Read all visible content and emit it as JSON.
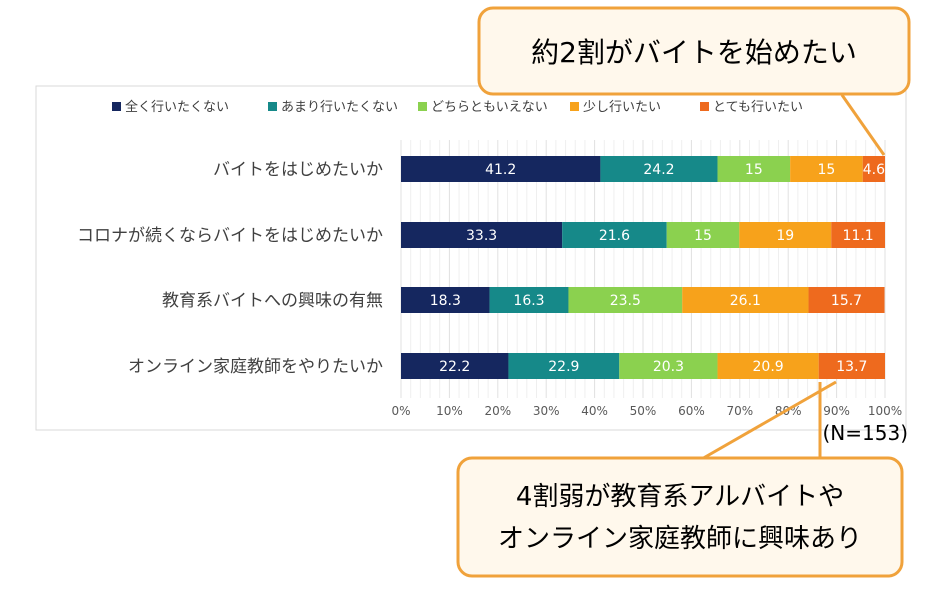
{
  "chart_data": {
    "type": "bar",
    "orientation": "horizontal",
    "stacked": "percent",
    "categories": [
      "バイトをはじめたいか",
      "コロナが続くならバイトをはじめたいか",
      "教育系バイトへの興味の有無",
      "オンライン家庭教師をやりたいか"
    ],
    "series": [
      {
        "name": "全く行いたくない",
        "color": "#15275f",
        "values": [
          41.2,
          33.3,
          18.3,
          22.2
        ]
      },
      {
        "name": "あまり行いたくない",
        "color": "#168989",
        "values": [
          24.2,
          21.6,
          16.3,
          22.9
        ]
      },
      {
        "name": "どちらともいえない",
        "color": "#8bd14f",
        "values": [
          15,
          15,
          23.5,
          20.3
        ]
      },
      {
        "name": "少し行いたい",
        "color": "#f7a21b",
        "values": [
          15,
          19,
          26.1,
          20.9
        ]
      },
      {
        "name": "とても行いたい",
        "color": "#ee6a1e",
        "values": [
          4.6,
          11.1,
          15.7,
          13.7
        ]
      }
    ],
    "xlim": [
      0,
      100
    ],
    "x_ticks": [
      "0%",
      "10%",
      "20%",
      "30%",
      "40%",
      "50%",
      "60%",
      "70%",
      "80%",
      "90%",
      "100%"
    ],
    "legend": "top",
    "grid": true,
    "annotations": {
      "sample_size": "(N=153)",
      "callout_top": "約2割がバイトを始めたい",
      "callout_bottom": [
        "4割弱が教育系アルバイトや",
        "オンライン家庭教師に興味あり"
      ]
    }
  }
}
